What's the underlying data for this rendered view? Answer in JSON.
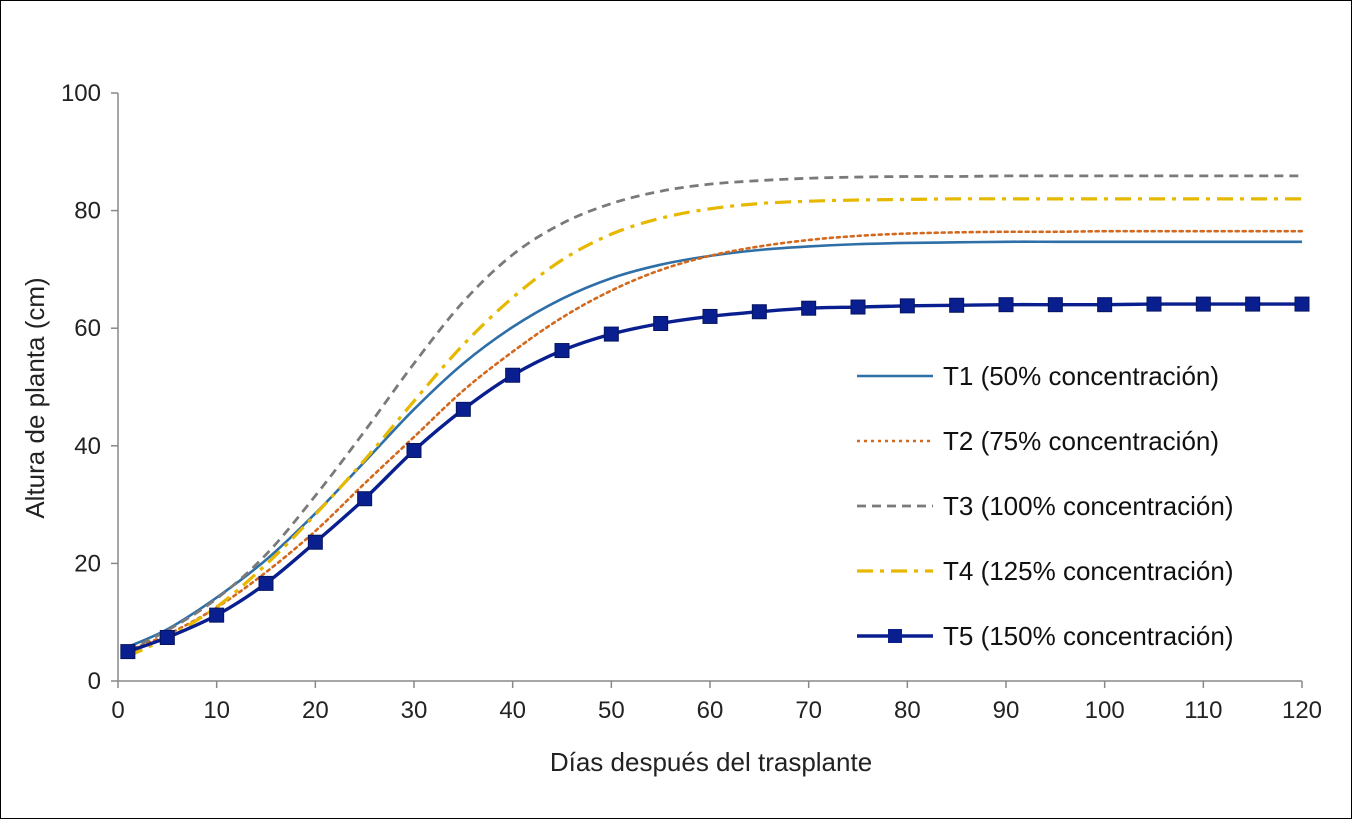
{
  "chart_data": {
    "type": "line",
    "title": "",
    "xlabel": "Días después del trasplante",
    "ylabel": "Altura de planta (cm)",
    "xlim": [
      0,
      120
    ],
    "ylim": [
      0,
      100
    ],
    "xticks": [
      0,
      10,
      20,
      30,
      40,
      50,
      60,
      70,
      80,
      90,
      100,
      110,
      120
    ],
    "yticks": [
      0,
      20,
      40,
      60,
      80,
      100
    ],
    "grid": false,
    "legend_position": "right",
    "x": [
      1,
      5,
      10,
      15,
      20,
      25,
      30,
      35,
      40,
      45,
      50,
      55,
      60,
      65,
      70,
      75,
      80,
      85,
      90,
      95,
      100,
      105,
      110,
      115,
      120
    ],
    "series": [
      {
        "name": "T1 (50% concentración)",
        "color": "#2e6fa8",
        "style": "solid",
        "values": [
          5.8,
          8.8,
          14.2,
          20.6,
          28.5,
          37.3,
          46.2,
          54.0,
          60.2,
          65.0,
          68.5,
          70.8,
          72.3,
          73.3,
          73.9,
          74.3,
          74.5,
          74.6,
          74.7,
          74.7,
          74.7,
          74.7,
          74.7,
          74.7,
          74.7
        ]
      },
      {
        "name": "T2 (75% concentración)",
        "color": "#d2691e",
        "style": "dotted",
        "values": [
          5.2,
          7.9,
          12.5,
          18.5,
          25.5,
          33.6,
          41.5,
          49.4,
          56.0,
          61.8,
          66.4,
          69.9,
          72.3,
          73.9,
          75.0,
          75.7,
          76.1,
          76.3,
          76.4,
          76.4,
          76.5,
          76.5,
          76.5,
          76.5,
          76.5
        ]
      },
      {
        "name": "T3 (100% concentración)",
        "color": "#7a7a7a",
        "style": "dashed",
        "values": [
          5.3,
          8.6,
          14.0,
          21.5,
          31.5,
          42.5,
          54.0,
          64.5,
          72.5,
          77.8,
          81.2,
          83.3,
          84.5,
          85.1,
          85.5,
          85.7,
          85.8,
          85.8,
          85.9,
          85.9,
          85.9,
          85.9,
          85.9,
          85.9,
          85.9
        ]
      },
      {
        "name": "T4 (125% concentración)",
        "color": "#e6b800",
        "style": "dashdot",
        "values": [
          4.2,
          7.4,
          12.6,
          19.8,
          28.3,
          37.6,
          47.6,
          57.2,
          65.2,
          71.6,
          76.0,
          78.7,
          80.3,
          81.2,
          81.6,
          81.8,
          81.9,
          82.0,
          82.0,
          82.0,
          82.0,
          82.0,
          82.0,
          82.0,
          82.0
        ]
      },
      {
        "name": "T5 (150% concentración)",
        "color": "#0a1f8f",
        "style": "solid-marker",
        "values": [
          5.0,
          7.4,
          11.2,
          16.6,
          23.6,
          31.0,
          39.2,
          46.2,
          52.0,
          56.2,
          59.0,
          60.8,
          62.0,
          62.8,
          63.4,
          63.6,
          63.8,
          63.9,
          64.0,
          64.0,
          64.0,
          64.1,
          64.1,
          64.1,
          64.1
        ]
      }
    ]
  }
}
